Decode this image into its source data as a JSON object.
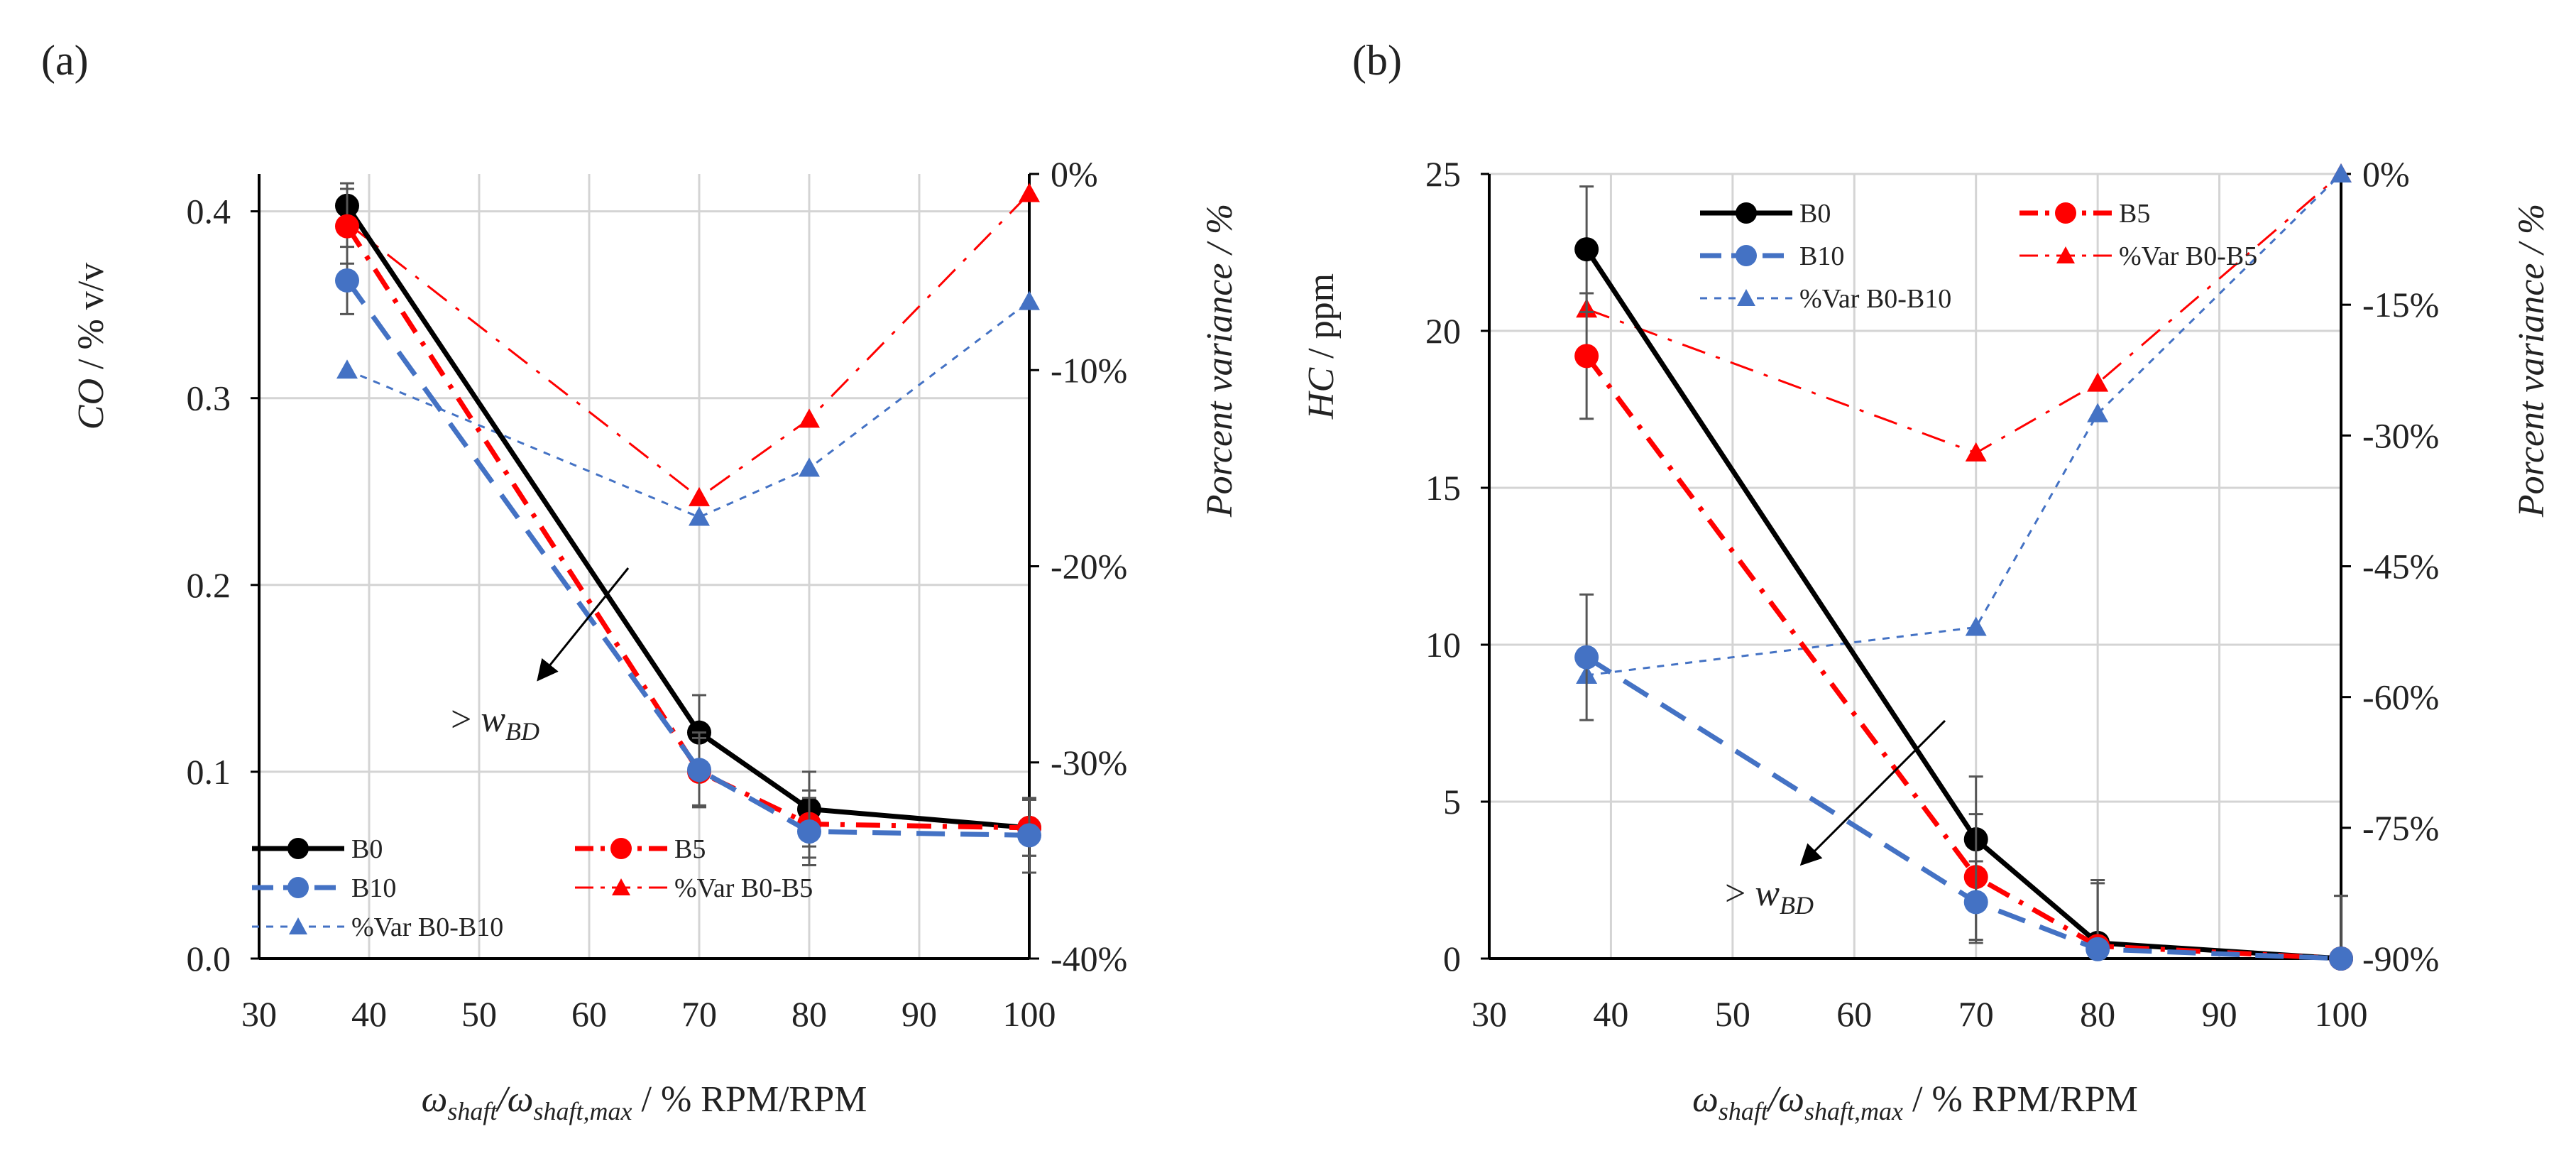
{
  "figure": {
    "panel_labels": [
      "(a)",
      "(b)"
    ]
  },
  "colors": {
    "B0": "#000000",
    "B5": "#ff0000",
    "B10": "#4472c4",
    "grid": "#d4d4d4",
    "errorbar": "#555555"
  },
  "chart_data": [
    {
      "type": "line",
      "panel": "(a)",
      "xlabel_parts": [
        "ω",
        "shaft",
        "/ω",
        "shaft,max",
        " / % RPM/RPM"
      ],
      "ylabel_parts": [
        "CO",
        " / % v/v"
      ],
      "y2label": "Porcent variance / %",
      "x_ticks": [
        "30",
        "40",
        "50",
        "60",
        "70",
        "80",
        "90",
        "100"
      ],
      "x_tick_values": [
        30,
        40,
        50,
        60,
        70,
        80,
        90,
        100
      ],
      "xlim": [
        30,
        100
      ],
      "y_ticks": [
        "0.0",
        "0.1",
        "0.2",
        "0.3",
        "0.4"
      ],
      "y_tick_values": [
        0.0,
        0.1,
        0.2,
        0.3,
        0.4
      ],
      "ylim": [
        0,
        0.42
      ],
      "y2_ticks": [
        "0%",
        "-10%",
        "-20%",
        "-30%",
        "-40%"
      ],
      "y2_tick_values": [
        0,
        -10,
        -20,
        -30,
        -40
      ],
      "y2lim": [
        -40,
        0
      ],
      "x": [
        38,
        70,
        80,
        100
      ],
      "series": [
        {
          "key": "B0",
          "name": "B0",
          "axis": "left",
          "values": [
            0.403,
            0.121,
            0.08,
            0.07
          ],
          "errors": [
            0.012,
            0.02,
            0.02,
            0.015
          ],
          "color": "#000000",
          "dash": "solid",
          "marker": "circle",
          "width": 7
        },
        {
          "key": "B5",
          "name": "B5",
          "axis": "left",
          "values": [
            0.392,
            0.1,
            0.072,
            0.07
          ],
          "errors": [
            0.02,
            0.018,
            0.018,
            0.015
          ],
          "color": "#ff0000",
          "dash": "dashdot",
          "marker": "circle",
          "width": 7
        },
        {
          "key": "B10",
          "name": "B10",
          "axis": "left",
          "values": [
            0.363,
            0.101,
            0.068,
            0.066
          ],
          "errors": [
            0.018,
            0.02,
            0.018,
            0.02
          ],
          "color": "#4472c4",
          "dash": "dash",
          "marker": "circle",
          "width": 7
        },
        {
          "key": "VB5",
          "name": "%Var B0-B5",
          "axis": "right",
          "values": [
            -2.5,
            -16.5,
            -12.5,
            -1.0
          ],
          "color": "#ff0000",
          "dash": "dashdot",
          "marker": "triangle",
          "width": 3
        },
        {
          "key": "VB10",
          "name": "%Var B0-B10",
          "axis": "right",
          "values": [
            -10.0,
            -17.5,
            -15.0,
            -6.5
          ],
          "color": "#4472c4",
          "dash": "dot",
          "marker": "triangle",
          "width": 3
        }
      ],
      "annotation": {
        "text_prefix": "> ",
        "text_main": "w",
        "text_sub": "BD"
      }
    },
    {
      "type": "line",
      "panel": "(b)",
      "xlabel_parts": [
        "ω",
        "shaft",
        "/ω",
        "shaft,max",
        " / % RPM/RPM"
      ],
      "ylabel_parts": [
        "HC",
        " / ppm"
      ],
      "y2label": "Porcent variance / %",
      "x_ticks": [
        "30",
        "40",
        "50",
        "60",
        "70",
        "80",
        "90",
        "100"
      ],
      "x_tick_values": [
        30,
        40,
        50,
        60,
        70,
        80,
        90,
        100
      ],
      "xlim": [
        30,
        100
      ],
      "y_ticks": [
        "0",
        "5",
        "10",
        "15",
        "20",
        "25"
      ],
      "y_tick_values": [
        0,
        5,
        10,
        15,
        20,
        25
      ],
      "ylim": [
        0,
        25
      ],
      "y2_ticks": [
        "0%",
        "-15%",
        "-30%",
        "-45%",
        "-60%",
        "-75%",
        "-90%"
      ],
      "y2_tick_values": [
        0,
        -15,
        -30,
        -45,
        -60,
        -75,
        -90
      ],
      "y2lim": [
        -90,
        0
      ],
      "x": [
        38,
        70,
        80,
        100
      ],
      "series": [
        {
          "key": "B0",
          "name": "B0",
          "axis": "left",
          "values": [
            22.6,
            3.8,
            0.5,
            0.0
          ],
          "errors": [
            2.0,
            2.0,
            2.0,
            2.0
          ],
          "color": "#000000",
          "dash": "solid",
          "marker": "circle",
          "width": 7
        },
        {
          "key": "B5",
          "name": "B5",
          "axis": "left",
          "values": [
            19.2,
            2.6,
            0.4,
            0.0
          ],
          "errors": [
            2.0,
            2.0,
            2.0,
            2.0
          ],
          "color": "#ff0000",
          "dash": "dashdot",
          "marker": "circle",
          "width": 7
        },
        {
          "key": "B10",
          "name": "B10",
          "axis": "left",
          "values": [
            9.6,
            1.8,
            0.3,
            0.0
          ],
          "errors": [
            2.0,
            1.3,
            0.0,
            0.0
          ],
          "color": "#4472c4",
          "dash": "dash",
          "marker": "circle",
          "width": 7
        },
        {
          "key": "VB5",
          "name": "%Var B0-B5",
          "axis": "right",
          "values": [
            -15.5,
            -32.0,
            -24.0,
            0.0
          ],
          "color": "#ff0000",
          "dash": "dashdot",
          "marker": "triangle",
          "width": 3
        },
        {
          "key": "VB10",
          "name": "%Var B0-B10",
          "axis": "right",
          "values": [
            -57.5,
            -52.0,
            -27.5,
            0.0
          ],
          "color": "#4472c4",
          "dash": "dot",
          "marker": "triangle",
          "width": 3
        }
      ],
      "annotation": {
        "text_prefix": "> ",
        "text_main": "w",
        "text_sub": "BD"
      }
    }
  ]
}
